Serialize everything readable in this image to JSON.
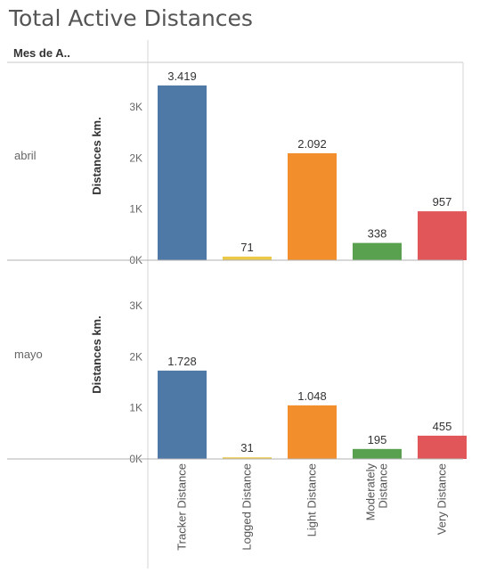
{
  "title": "Total Active Distances",
  "chart_data": {
    "type": "bar",
    "title": "Total Active Distances",
    "row_header": "Mes de A..",
    "ylabel": "Distances km.",
    "ylim": [
      0,
      3800
    ],
    "yticks": [
      0,
      1000,
      2000,
      3000
    ],
    "ytick_labels": [
      "0K",
      "1K",
      "2K",
      "3K"
    ],
    "categories": [
      [
        "Tracker Distance"
      ],
      [
        "Logged Distance"
      ],
      [
        "Light Distance"
      ],
      [
        "Moderately",
        "Distance"
      ],
      [
        "Very Distance"
      ]
    ],
    "colors": [
      "#4e79a7",
      "#edc948",
      "#f28e2b",
      "#59a14f",
      "#e15759"
    ],
    "panels": [
      {
        "label": "abril",
        "values": [
          3419,
          71,
          2092,
          338,
          957
        ],
        "value_labels": [
          "3.419",
          "71",
          "2.092",
          "338",
          "957"
        ]
      },
      {
        "label": "mayo",
        "values": [
          1728,
          31,
          1048,
          195,
          455
        ],
        "value_labels": [
          "1.728",
          "31",
          "1.048",
          "195",
          "455"
        ]
      }
    ]
  }
}
